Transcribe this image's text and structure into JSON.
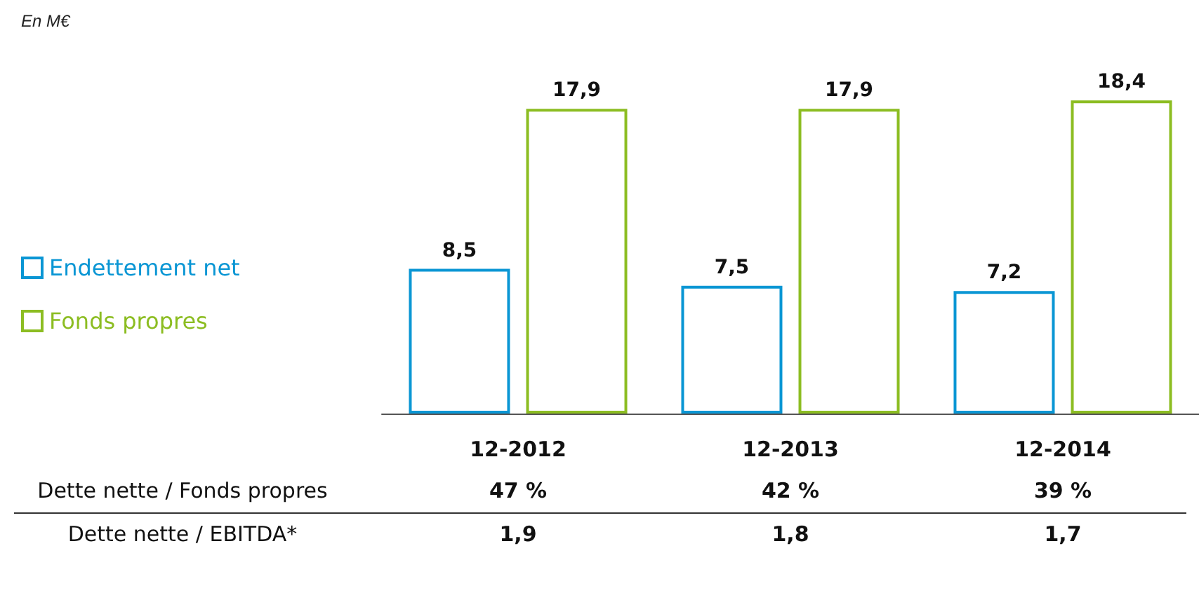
{
  "chart_data": {
    "type": "bar",
    "title": "En M€",
    "categories": [
      "12-2012",
      "12-2013",
      "12-2014"
    ],
    "series": [
      {
        "name": "Endettement net",
        "color": "#0a96d4",
        "values": [
          8.5,
          7.5,
          7.2
        ],
        "value_labels": [
          "8,5",
          "7,5",
          "7,2"
        ]
      },
      {
        "name": "Fonds propres",
        "color": "#8cbd22",
        "values": [
          17.9,
          17.9,
          18.4
        ],
        "value_labels": [
          "17,9",
          "17,9",
          "18,4"
        ]
      }
    ],
    "legend": "left",
    "annotations": [
      "Dette nette / Fonds propres",
      "47 %",
      "42 %",
      "39 %",
      "Dette nette / EBITDA*",
      "1,9",
      "1,8",
      "1,7"
    ]
  }
}
